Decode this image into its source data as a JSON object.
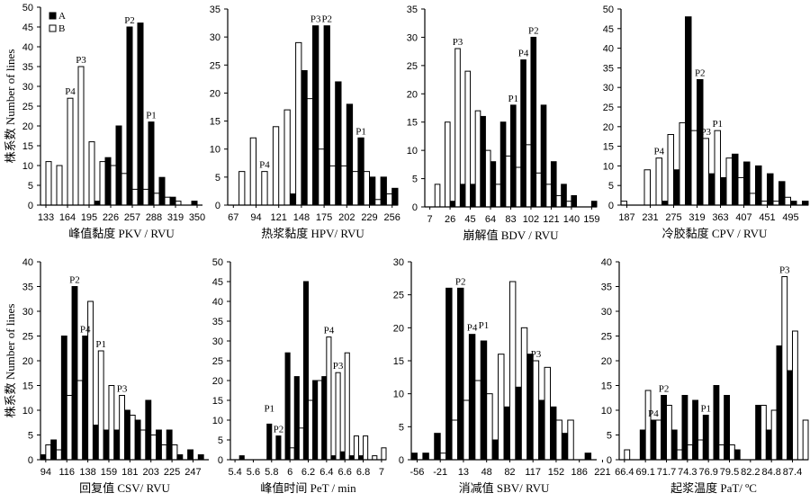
{
  "figure": {
    "ylabel": "株系数 Number of lines",
    "legend": [
      {
        "name": "A",
        "color": "#000000"
      },
      {
        "name": "B",
        "color": "#ffffff"
      }
    ],
    "colors": {
      "A": "#000000",
      "B": "#ffffff",
      "axis": "#000000"
    }
  },
  "chart_data": [
    {
      "type": "bar",
      "title": "",
      "xlabel": "峰值黏度 PKV / RVU",
      "ylabel": "株系数 Number of lines",
      "ylim": [
        0,
        50
      ],
      "ystep": 5,
      "xticks": [
        "133",
        "164",
        "195",
        "226",
        "257",
        "288",
        "319",
        "350"
      ],
      "tick_every": 2,
      "order": "AB",
      "series": [
        {
          "name": "A",
          "values": [
            0,
            0,
            0,
            0,
            0,
            1,
            12,
            20,
            45,
            46,
            21,
            7,
            2,
            0,
            1
          ]
        },
        {
          "name": "B",
          "values": [
            11,
            10,
            27,
            35,
            16,
            11,
            10,
            8,
            4,
            4,
            3,
            2,
            1,
            0,
            0
          ]
        }
      ],
      "annotations": [
        {
          "text": "P4",
          "bin": 2,
          "series": "B"
        },
        {
          "text": "P3",
          "bin": 3,
          "series": "B"
        },
        {
          "text": "P2",
          "bin": 8,
          "series": "A"
        },
        {
          "text": "P1",
          "bin": 10,
          "series": "A"
        }
      ],
      "legend": "top-left",
      "show_ylabel": true
    },
    {
      "type": "bar",
      "title": "",
      "xlabel": "热浆黏度  HPV/ RVU",
      "ylabel": "",
      "ylim": [
        0,
        35
      ],
      "ystep": 5,
      "xticks": [
        "67",
        "94",
        "121",
        "148",
        "175",
        "202",
        "229",
        "256"
      ],
      "tick_every": 2,
      "order": "BA",
      "series": [
        {
          "name": "A",
          "values": [
            0,
            0,
            0,
            0,
            0,
            2,
            24,
            32,
            32,
            22,
            18,
            12,
            5,
            5,
            3
          ]
        },
        {
          "name": "B",
          "values": [
            0,
            6,
            12,
            6,
            14,
            17,
            29,
            19,
            10,
            7,
            7,
            6,
            6,
            1,
            2
          ]
        }
      ],
      "annotations": [
        {
          "text": "P4",
          "bin": 3,
          "series": "B"
        },
        {
          "text": "P3",
          "bin": 7,
          "series": "A"
        },
        {
          "text": "P2",
          "bin": 8,
          "series": "A"
        },
        {
          "text": "P1",
          "bin": 11,
          "series": "A"
        }
      ],
      "show_ylabel": false
    },
    {
      "type": "bar",
      "title": "",
      "xlabel": "崩解值 BDV / RVU",
      "ylabel": "",
      "ylim": [
        0,
        35
      ],
      "ystep": 5,
      "xticks": [
        "7",
        "26",
        "45",
        "64",
        "83",
        "102",
        "121",
        "140",
        "159"
      ],
      "tick_every": 2,
      "order": "BA",
      "series": [
        {
          "name": "A",
          "values": [
            0,
            0,
            1,
            4,
            4,
            16,
            8,
            15,
            18,
            26,
            30,
            18,
            8,
            4,
            2,
            0,
            1
          ]
        },
        {
          "name": "B",
          "values": [
            0,
            4,
            15,
            28,
            24,
            17,
            10,
            4,
            9,
            7,
            11,
            6,
            4,
            2,
            1,
            0,
            0
          ]
        }
      ],
      "annotations": [
        {
          "text": "P3",
          "bin": 3,
          "series": "B"
        },
        {
          "text": "P1",
          "bin": 8,
          "series": "A"
        },
        {
          "text": "P4",
          "bin": 9,
          "series": "A"
        },
        {
          "text": "P2",
          "bin": 10,
          "series": "A"
        }
      ],
      "show_ylabel": false
    },
    {
      "type": "bar",
      "title": "",
      "xlabel": "冷胶黏度 CPV / RVU",
      "ylabel": "",
      "ylim": [
        0,
        50
      ],
      "ystep": 5,
      "xticks": [
        "187",
        "231",
        "275",
        "319",
        "363",
        "407",
        "451",
        "495"
      ],
      "tick_every": 2,
      "order": "BA",
      "series": [
        {
          "name": "A",
          "values": [
            0,
            0,
            0,
            1,
            9,
            48,
            32,
            8,
            7,
            13,
            11,
            10,
            8,
            6,
            1,
            1
          ]
        },
        {
          "name": "B",
          "values": [
            1,
            0,
            9,
            12,
            18,
            21,
            19,
            17,
            19,
            12,
            7,
            3,
            1,
            1,
            2,
            0
          ]
        }
      ],
      "annotations": [
        {
          "text": "P4",
          "bin": 3,
          "series": "B"
        },
        {
          "text": "P2",
          "bin": 6,
          "series": "A"
        },
        {
          "text": "P3",
          "bin": 7,
          "series": "B"
        },
        {
          "text": "P1",
          "bin": 8,
          "series": "B"
        }
      ],
      "show_ylabel": false
    },
    {
      "type": "bar",
      "title": "",
      "xlabel": "回复值 CSV/ RVU",
      "ylabel": "株系数 Number of lines",
      "ylim": [
        0,
        40
      ],
      "ystep": 5,
      "xticks": [
        "94",
        "116",
        "138",
        "159",
        "181",
        "203",
        "225",
        "247"
      ],
      "tick_every": 2,
      "order": "AB",
      "series": [
        {
          "name": "A",
          "values": [
            1,
            4,
            25,
            35,
            25,
            7,
            6,
            6,
            10,
            8,
            12,
            6,
            6,
            1,
            2,
            1
          ]
        },
        {
          "name": "B",
          "values": [
            3,
            2,
            13,
            16,
            32,
            22,
            15,
            13,
            9,
            6,
            5,
            3,
            3,
            0,
            0,
            0
          ]
        }
      ],
      "annotations": [
        {
          "text": "P2",
          "bin": 3,
          "series": "A"
        },
        {
          "text": "P4",
          "bin": 4,
          "series": "A"
        },
        {
          "text": "P1",
          "bin": 5,
          "series": "B"
        },
        {
          "text": "P3",
          "bin": 7,
          "series": "B"
        }
      ],
      "show_ylabel": true
    },
    {
      "type": "bar",
      "title": "",
      "xlabel": "峰值时间  PeT  / min",
      "ylabel": "",
      "ylim": [
        0,
        50
      ],
      "ystep": 5,
      "xticks": [
        "5.4",
        "5.6",
        "5.8",
        "6",
        "6.2",
        "6.4",
        "6.6",
        "6.8",
        "7"
      ],
      "tick_every": 2,
      "order": "AB",
      "series": [
        {
          "name": "A",
          "values": [
            0,
            1,
            0,
            0,
            9,
            6,
            27,
            21,
            45,
            20,
            21,
            1,
            2,
            1,
            1,
            0,
            0
          ]
        },
        {
          "name": "B",
          "values": [
            0,
            0,
            0,
            0,
            0,
            0,
            3,
            8,
            15,
            20,
            31,
            22,
            27,
            6,
            6,
            1,
            3
          ]
        }
      ],
      "annotations": [
        {
          "text": "P1",
          "bin": 4,
          "series": "A",
          "lift": 2
        },
        {
          "text": "P2",
          "bin": 5,
          "series": "A"
        },
        {
          "text": "P4",
          "bin": 10,
          "series": "B"
        },
        {
          "text": "P3",
          "bin": 11,
          "series": "B"
        }
      ],
      "show_ylabel": false
    },
    {
      "type": "bar",
      "title": "",
      "xlabel": "消减值  SBV/ RVU",
      "ylabel": "",
      "ylim": [
        0,
        30
      ],
      "ystep": 5,
      "xticks": [
        "-56",
        "-21",
        "13",
        "48",
        "82",
        "117",
        "152",
        "186",
        "221"
      ],
      "tick_every": 2,
      "order": "AB",
      "series": [
        {
          "name": "A",
          "values": [
            1,
            1,
            4,
            26,
            26,
            19,
            18,
            3,
            8,
            11,
            16,
            9,
            8,
            4,
            0,
            1
          ]
        },
        {
          "name": "B",
          "values": [
            0,
            0,
            1,
            6,
            9,
            12,
            10,
            16,
            27,
            20,
            15,
            14,
            6,
            6,
            0,
            0
          ]
        }
      ],
      "annotations": [
        {
          "text": "P2",
          "bin": 4,
          "series": "A"
        },
        {
          "text": "P4",
          "bin": 5,
          "series": "A"
        },
        {
          "text": "P1",
          "bin": 6,
          "series": "A",
          "lift": 2
        },
        {
          "text": "P3",
          "bin": 10,
          "series": "B"
        }
      ],
      "show_ylabel": false
    },
    {
      "type": "bar",
      "title": "",
      "xlabel": "起浆温度 PaT/ ºC",
      "ylabel": "",
      "ylim": [
        0,
        40
      ],
      "ystep": 5,
      "xticks": [
        "66.4",
        "69.1",
        "71.7",
        "74.3",
        "76.9",
        "79.5",
        "82.2",
        "84.8",
        "87.4"
      ],
      "tick_every": 2,
      "order": "AB",
      "series": [
        {
          "name": "A",
          "values": [
            0,
            0,
            6,
            8,
            13,
            6,
            13,
            12,
            9,
            15,
            13,
            2,
            0,
            11,
            6,
            23,
            18,
            0
          ]
        },
        {
          "name": "B",
          "values": [
            2,
            0,
            14,
            8,
            11,
            2,
            3,
            4,
            0,
            3,
            3,
            0,
            0,
            11,
            10,
            37,
            26,
            8
          ]
        }
      ],
      "annotations": [
        {
          "text": "P4",
          "bin": 3,
          "series": "A"
        },
        {
          "text": "P2",
          "bin": 4,
          "series": "A"
        },
        {
          "text": "P1",
          "bin": 8,
          "series": "A"
        },
        {
          "text": "P3",
          "bin": 15,
          "series": "B"
        }
      ],
      "show_ylabel": false
    }
  ]
}
